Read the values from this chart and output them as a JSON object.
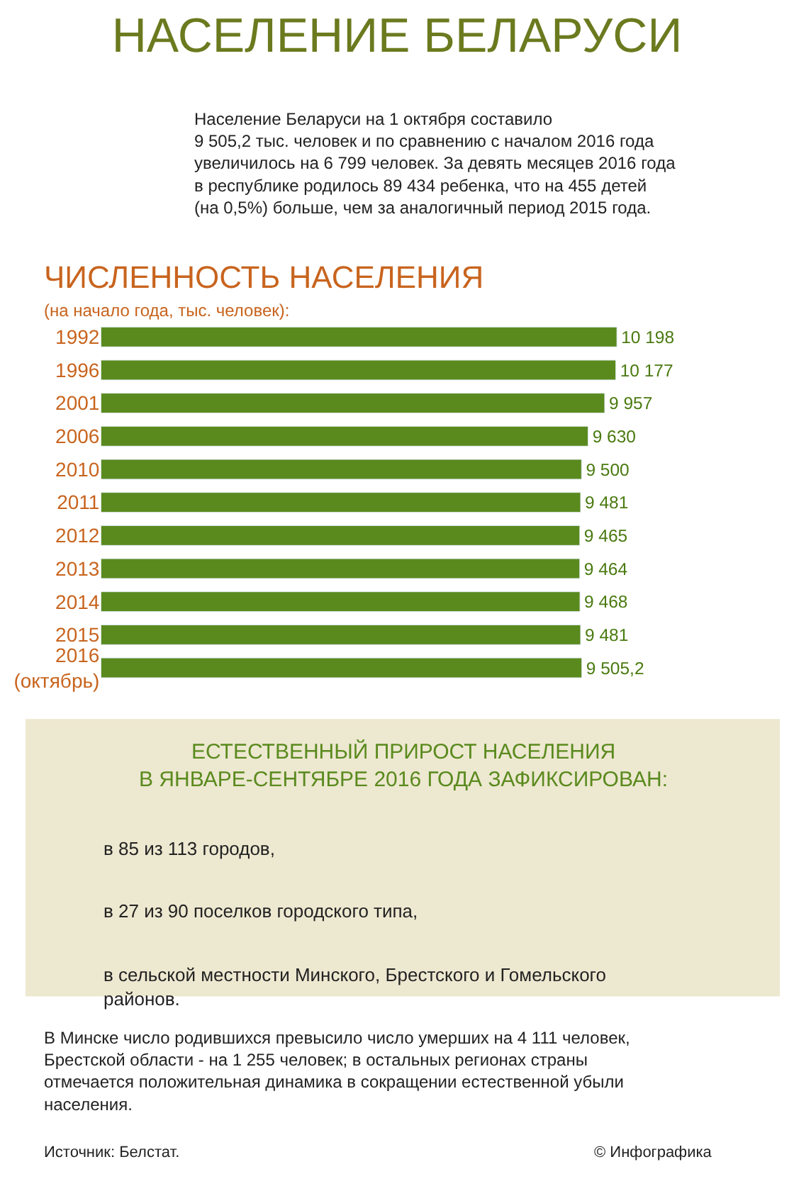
{
  "chart_data": {
    "type": "bar",
    "title": "НАСЕЛЕНИЕ БЕЛАРУСИ",
    "subtitle": "Население Беларуси на 1 октября составило\n9 505,2 тыс. человек и по сравнению с началом 2016 года\nувеличилось на 6 799 человек. За девять месяцев 2016 года\nв республике родилось 89 434 ребенка, что на 455 детей\n(на 0,5%) больше, чем за аналогичный период 2015 года.",
    "categories": [
      "1992",
      "1996",
      "2001",
      "2006",
      "2010",
      "2011",
      "2012",
      "2013",
      "2014",
      "2015",
      "2016\n(октябрь)"
    ],
    "values": [
      10198,
      10177,
      9957,
      9630,
      9500,
      9481,
      9465,
      9464,
      9468,
      9481,
      9505.2
    ],
    "value_labels": [
      "10 198",
      "10 177",
      "9 957",
      "9 630",
      "9 500",
      "9 481",
      "9 465",
      "9 464",
      "9 468",
      "9 481",
      "9 505,2"
    ],
    "color": "#5a8a1e",
    "annotations": [
      "ЧИСЛЕННОСТЬ НАСЕЛЕНИЯ",
      "(на начало года, тыс. человек):",
      "ЕСТЕСТВЕННЫЙ ПРИРОСТ НАСЕЛЕНИЯ\nВ ЯНВАРЕ-СЕНТЯБРЕ 2016 ГОДА ЗАФИКСИРОВАН:",
      "в 85 из 113 городов,",
      "в 27 из 90 поселков городского типа,",
      "в сельской местности Минского, Брестского и Гомельского\nрайонов.",
      "В Минске число родившихся превысило число умерших на 4 111 человек,\nБрестской области - на 1 255 человек; в остальных регионах страны\nотмечается положительная динамика в сокращении естественной убыли\nнаселения.",
      "Источник: Белстат.",
      "© Инфографика"
    ],
    "orientation": "horizontal"
  }
}
